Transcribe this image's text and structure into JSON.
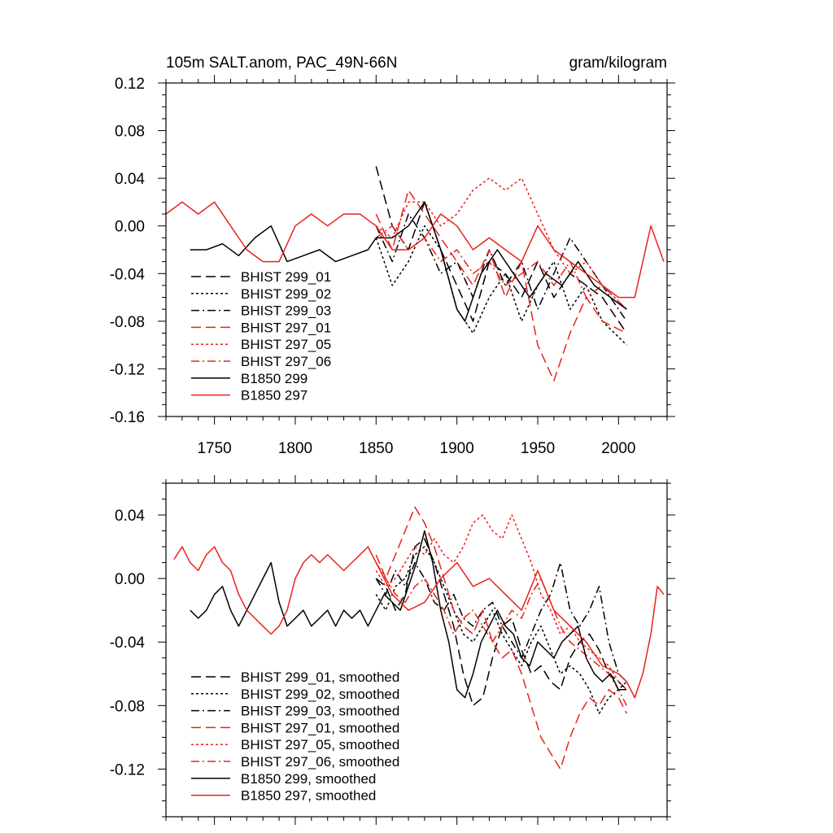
{
  "chart_data": [
    {
      "type": "line",
      "title": "105m SALT.anom, PAC_49N-66N",
      "units": "gram/kilogram",
      "xlim": [
        1720,
        2030
      ],
      "ylim": [
        -0.16,
        0.12
      ],
      "xticks": [
        1750,
        1800,
        1850,
        1900,
        1950,
        2000
      ],
      "yticks": [
        "0.12",
        "0.08",
        "0.04",
        "0.00",
        "-0.04",
        "-0.08",
        "-0.12",
        "-0.16"
      ],
      "yticks_values": [
        0.12,
        0.08,
        0.04,
        0.0,
        -0.04,
        -0.08,
        -0.12,
        -0.16
      ],
      "legend_position": "lower-left",
      "series": [
        {
          "name": "BHIST 299_01",
          "color": "#000000",
          "dash": "dashed",
          "x": [
            1850,
            1860,
            1870,
            1880,
            1890,
            1900,
            1910,
            1920,
            1930,
            1940,
            1950,
            1960,
            1970,
            1980,
            1990,
            2005
          ],
          "y": [
            0.05,
            0.0,
            -0.02,
            0.02,
            -0.02,
            -0.05,
            -0.08,
            -0.03,
            -0.04,
            -0.06,
            -0.03,
            -0.06,
            -0.04,
            -0.05,
            -0.06,
            -0.09
          ]
        },
        {
          "name": "BHIST 299_02",
          "color": "#000000",
          "dash": "dotted",
          "x": [
            1850,
            1860,
            1870,
            1880,
            1890,
            1900,
            1910,
            1920,
            1930,
            1940,
            1950,
            1960,
            1970,
            1980,
            1990,
            2005
          ],
          "y": [
            -0.01,
            -0.05,
            -0.03,
            0.0,
            -0.02,
            -0.07,
            -0.09,
            -0.06,
            -0.04,
            -0.08,
            -0.05,
            -0.03,
            -0.07,
            -0.05,
            -0.08,
            -0.1
          ]
        },
        {
          "name": "BHIST 299_03",
          "color": "#000000",
          "dash": "dashdot",
          "x": [
            1850,
            1860,
            1870,
            1880,
            1890,
            1900,
            1910,
            1920,
            1930,
            1940,
            1950,
            1960,
            1970,
            1980,
            1990,
            2005
          ],
          "y": [
            0.0,
            -0.03,
            0.01,
            -0.01,
            -0.04,
            -0.03,
            -0.06,
            -0.02,
            -0.05,
            -0.03,
            -0.07,
            -0.04,
            -0.01,
            -0.03,
            -0.05,
            -0.08
          ]
        },
        {
          "name": "BHIST 297_01",
          "color": "#e8221c",
          "dash": "dashed",
          "x": [
            1850,
            1860,
            1870,
            1880,
            1890,
            1900,
            1910,
            1920,
            1930,
            1940,
            1950,
            1960,
            1970,
            1980,
            1990,
            2005
          ],
          "y": [
            0.01,
            -0.02,
            0.03,
            0.01,
            -0.01,
            -0.03,
            -0.05,
            -0.02,
            -0.06,
            -0.03,
            -0.1,
            -0.13,
            -0.09,
            -0.06,
            -0.08,
            -0.09
          ]
        },
        {
          "name": "BHIST 297_05",
          "color": "#e8221c",
          "dash": "dotted",
          "x": [
            1850,
            1860,
            1870,
            1880,
            1890,
            1900,
            1910,
            1920,
            1930,
            1940,
            1950,
            1960,
            1970,
            1980,
            1990,
            2005
          ],
          "y": [
            0.0,
            -0.01,
            0.02,
            0.02,
            0.0,
            0.01,
            0.03,
            0.04,
            0.03,
            0.04,
            0.01,
            -0.02,
            -0.04,
            -0.03,
            -0.05,
            -0.07
          ]
        },
        {
          "name": "BHIST 297_06",
          "color": "#e8221c",
          "dash": "dashdot",
          "x": [
            1850,
            1860,
            1870,
            1880,
            1890,
            1900,
            1910,
            1920,
            1930,
            1940,
            1950,
            1960,
            1970,
            1980,
            1990,
            2005
          ],
          "y": [
            -0.01,
            0.0,
            -0.02,
            -0.01,
            -0.03,
            -0.02,
            -0.04,
            -0.03,
            -0.05,
            -0.04,
            -0.03,
            -0.05,
            -0.03,
            -0.06,
            -0.05,
            -0.07
          ]
        },
        {
          "name": "B1850 299",
          "color": "#000000",
          "dash": "solid",
          "x": [
            1735,
            1745,
            1755,
            1765,
            1775,
            1785,
            1795,
            1805,
            1815,
            1825,
            1835,
            1845,
            1850,
            1860,
            1870,
            1880,
            1890,
            1900,
            1905,
            1915,
            1925,
            1935,
            1945,
            1955,
            1965,
            1975,
            1985,
            1995,
            2005
          ],
          "y": [
            -0.02,
            -0.02,
            -0.015,
            -0.025,
            -0.01,
            0.0,
            -0.03,
            -0.025,
            -0.02,
            -0.03,
            -0.025,
            -0.02,
            -0.01,
            -0.01,
            0.0,
            0.02,
            -0.02,
            -0.07,
            -0.08,
            -0.04,
            -0.02,
            -0.04,
            -0.06,
            -0.04,
            -0.05,
            -0.03,
            -0.05,
            -0.06,
            -0.07
          ]
        },
        {
          "name": "B1850 297",
          "color": "#e8221c",
          "dash": "solid",
          "x": [
            1720,
            1730,
            1740,
            1750,
            1760,
            1770,
            1780,
            1790,
            1800,
            1810,
            1820,
            1830,
            1840,
            1850,
            1860,
            1870,
            1880,
            1890,
            1900,
            1910,
            1920,
            1930,
            1940,
            1950,
            1960,
            1970,
            1980,
            1990,
            2000,
            2010,
            2020,
            2028
          ],
          "y": [
            0.01,
            0.02,
            0.01,
            0.02,
            0.0,
            -0.02,
            -0.03,
            -0.03,
            0.0,
            0.01,
            0.0,
            0.01,
            0.01,
            0.0,
            -0.02,
            -0.02,
            -0.01,
            0.01,
            0.0,
            -0.02,
            -0.01,
            -0.02,
            -0.03,
            0.0,
            -0.02,
            -0.03,
            -0.04,
            -0.05,
            -0.06,
            -0.06,
            0.0,
            -0.03
          ]
        }
      ]
    },
    {
      "type": "line",
      "title": "",
      "xlim": [
        1720,
        2030
      ],
      "ylim": [
        -0.15,
        0.06
      ],
      "xticks": [
        1750,
        1800,
        1850,
        1900,
        1950,
        2000
      ],
      "yticks": [
        "0.04",
        "0.00",
        "-0.04",
        "-0.08",
        "-0.12"
      ],
      "yticks_values": [
        0.04,
        0.0,
        -0.04,
        -0.08,
        -0.12
      ],
      "legend_position": "lower-left",
      "series": [
        {
          "name": "BHIST 299_01, smoothed",
          "color": "#000000",
          "dash": "dashed",
          "x": [
            1850,
            1856,
            1862,
            1868,
            1874,
            1880,
            1886,
            1892,
            1898,
            1904,
            1910,
            1916,
            1922,
            1928,
            1934,
            1940,
            1946,
            1952,
            1958,
            1964,
            1970,
            1976,
            1982,
            1988,
            1994,
            2000,
            2005
          ],
          "y": [
            0.0,
            -0.005,
            -0.02,
            -0.01,
            0.02,
            0.025,
            0.01,
            -0.01,
            -0.03,
            -0.06,
            -0.08,
            -0.075,
            -0.05,
            -0.03,
            -0.025,
            -0.045,
            -0.06,
            -0.055,
            -0.065,
            -0.07,
            -0.05,
            -0.04,
            -0.035,
            -0.045,
            -0.06,
            -0.065,
            -0.07
          ]
        },
        {
          "name": "BHIST 299_02, smoothed",
          "color": "#000000",
          "dash": "dotted",
          "x": [
            1850,
            1856,
            1862,
            1868,
            1874,
            1880,
            1886,
            1892,
            1898,
            1904,
            1910,
            1916,
            1922,
            1928,
            1934,
            1940,
            1946,
            1952,
            1958,
            1964,
            1970,
            1976,
            1982,
            1988,
            1994,
            2000,
            2005
          ],
          "y": [
            -0.01,
            -0.02,
            -0.005,
            0.0,
            0.015,
            0.02,
            0.01,
            -0.005,
            -0.02,
            -0.035,
            -0.04,
            -0.03,
            -0.02,
            -0.035,
            -0.045,
            -0.055,
            -0.04,
            -0.03,
            -0.045,
            -0.06,
            -0.055,
            -0.06,
            -0.07,
            -0.085,
            -0.075,
            -0.07,
            -0.065
          ]
        },
        {
          "name": "BHIST 299_03, smoothed",
          "color": "#000000",
          "dash": "dashdot",
          "x": [
            1850,
            1856,
            1862,
            1868,
            1874,
            1880,
            1886,
            1892,
            1898,
            1904,
            1910,
            1916,
            1922,
            1928,
            1934,
            1940,
            1946,
            1952,
            1958,
            1964,
            1970,
            1976,
            1982,
            1988,
            1994,
            2000,
            2005
          ],
          "y": [
            0.0,
            -0.01,
            0.005,
            -0.005,
            0.01,
            0.0,
            -0.015,
            -0.02,
            -0.01,
            -0.025,
            -0.03,
            -0.02,
            -0.015,
            -0.03,
            -0.04,
            -0.05,
            -0.035,
            -0.02,
            -0.01,
            0.01,
            -0.02,
            -0.03,
            -0.02,
            -0.005,
            -0.04,
            -0.06,
            -0.065
          ]
        },
        {
          "name": "BHIST 297_01, smoothed",
          "color": "#e8221c",
          "dash": "dashed",
          "x": [
            1850,
            1856,
            1862,
            1868,
            1874,
            1880,
            1886,
            1892,
            1898,
            1904,
            1910,
            1916,
            1922,
            1928,
            1934,
            1940,
            1946,
            1952,
            1958,
            1964,
            1970,
            1976,
            1982,
            1988,
            1994,
            2000,
            2005
          ],
          "y": [
            0.015,
            0.0,
            0.015,
            0.03,
            0.045,
            0.035,
            0.02,
            0.0,
            -0.02,
            -0.03,
            -0.035,
            -0.02,
            -0.04,
            -0.05,
            -0.045,
            -0.06,
            -0.08,
            -0.1,
            -0.11,
            -0.12,
            -0.1,
            -0.085,
            -0.075,
            -0.08,
            -0.07,
            -0.075,
            -0.085
          ]
        },
        {
          "name": "BHIST 297_05, smoothed",
          "color": "#e8221c",
          "dash": "dotted",
          "x": [
            1850,
            1856,
            1862,
            1868,
            1874,
            1880,
            1886,
            1892,
            1898,
            1904,
            1910,
            1916,
            1922,
            1928,
            1934,
            1940,
            1946,
            1952,
            1958,
            1964,
            1970,
            1976,
            1982,
            1988,
            1994,
            2000,
            2005
          ],
          "y": [
            0.005,
            -0.005,
            0.0,
            0.01,
            0.02,
            0.015,
            0.025,
            0.015,
            0.01,
            0.02,
            0.035,
            0.04,
            0.03,
            0.025,
            0.04,
            0.025,
            0.01,
            -0.01,
            -0.02,
            -0.035,
            -0.03,
            -0.04,
            -0.045,
            -0.05,
            -0.055,
            -0.065,
            -0.07
          ]
        },
        {
          "name": "BHIST 297_06, smoothed",
          "color": "#e8221c",
          "dash": "dashdot",
          "x": [
            1850,
            1856,
            1862,
            1868,
            1874,
            1880,
            1886,
            1892,
            1898,
            1904,
            1910,
            1916,
            1922,
            1928,
            1934,
            1940,
            1946,
            1952,
            1958,
            1964,
            1970,
            1976,
            1982,
            1988,
            1994,
            2000,
            2005
          ],
          "y": [
            0.01,
            0.0,
            -0.01,
            -0.015,
            -0.005,
            0.0,
            -0.01,
            -0.02,
            -0.035,
            -0.025,
            -0.02,
            -0.03,
            -0.04,
            -0.03,
            -0.02,
            -0.025,
            -0.01,
            0.0,
            -0.015,
            -0.03,
            -0.04,
            -0.045,
            -0.05,
            -0.055,
            -0.06,
            -0.07,
            -0.08
          ]
        },
        {
          "name": "B1850 299, smoothed",
          "color": "#000000",
          "dash": "solid",
          "x": [
            1735,
            1740,
            1745,
            1750,
            1755,
            1760,
            1765,
            1770,
            1775,
            1780,
            1785,
            1790,
            1795,
            1800,
            1805,
            1810,
            1815,
            1820,
            1825,
            1830,
            1835,
            1840,
            1845,
            1850,
            1855,
            1860,
            1865,
            1870,
            1875,
            1880,
            1885,
            1890,
            1895,
            1900,
            1905,
            1910,
            1915,
            1920,
            1925,
            1930,
            1935,
            1940,
            1945,
            1950,
            1955,
            1960,
            1965,
            1970,
            1975,
            1980,
            1985,
            1990,
            1995,
            2000,
            2005
          ],
          "y": [
            -0.02,
            -0.025,
            -0.02,
            -0.01,
            -0.005,
            -0.02,
            -0.03,
            -0.02,
            -0.01,
            0.0,
            0.01,
            -0.015,
            -0.03,
            -0.025,
            -0.02,
            -0.03,
            -0.025,
            -0.02,
            -0.03,
            -0.02,
            -0.025,
            -0.02,
            -0.03,
            -0.02,
            -0.01,
            -0.015,
            -0.02,
            -0.005,
            0.01,
            0.03,
            0.01,
            -0.02,
            -0.04,
            -0.07,
            -0.075,
            -0.06,
            -0.04,
            -0.03,
            -0.02,
            -0.03,
            -0.035,
            -0.05,
            -0.055,
            -0.04,
            -0.045,
            -0.05,
            -0.04,
            -0.035,
            -0.03,
            -0.05,
            -0.06,
            -0.065,
            -0.06,
            -0.07,
            -0.07
          ]
        },
        {
          "name": "B1850 297, smoothed",
          "color": "#e8221c",
          "dash": "solid",
          "x": [
            1725,
            1730,
            1735,
            1740,
            1745,
            1750,
            1755,
            1760,
            1765,
            1770,
            1775,
            1780,
            1785,
            1790,
            1795,
            1800,
            1805,
            1810,
            1815,
            1820,
            1825,
            1830,
            1835,
            1840,
            1845,
            1850,
            1860,
            1870,
            1880,
            1890,
            1900,
            1910,
            1920,
            1930,
            1940,
            1950,
            1960,
            1970,
            1980,
            1990,
            2000,
            2005,
            2010,
            2015,
            2020,
            2024,
            2028
          ],
          "y": [
            0.012,
            0.02,
            0.01,
            0.005,
            0.015,
            0.02,
            0.01,
            0.005,
            -0.01,
            -0.02,
            -0.025,
            -0.03,
            -0.035,
            -0.03,
            -0.02,
            0.0,
            0.01,
            0.015,
            0.01,
            0.015,
            0.01,
            0.005,
            0.01,
            0.015,
            0.02,
            0.01,
            -0.01,
            -0.02,
            -0.015,
            0.0,
            0.01,
            -0.005,
            0.0,
            -0.01,
            -0.02,
            0.005,
            -0.02,
            -0.03,
            -0.04,
            -0.055,
            -0.06,
            -0.065,
            -0.075,
            -0.06,
            -0.035,
            -0.005,
            -0.01
          ]
        }
      ]
    }
  ]
}
